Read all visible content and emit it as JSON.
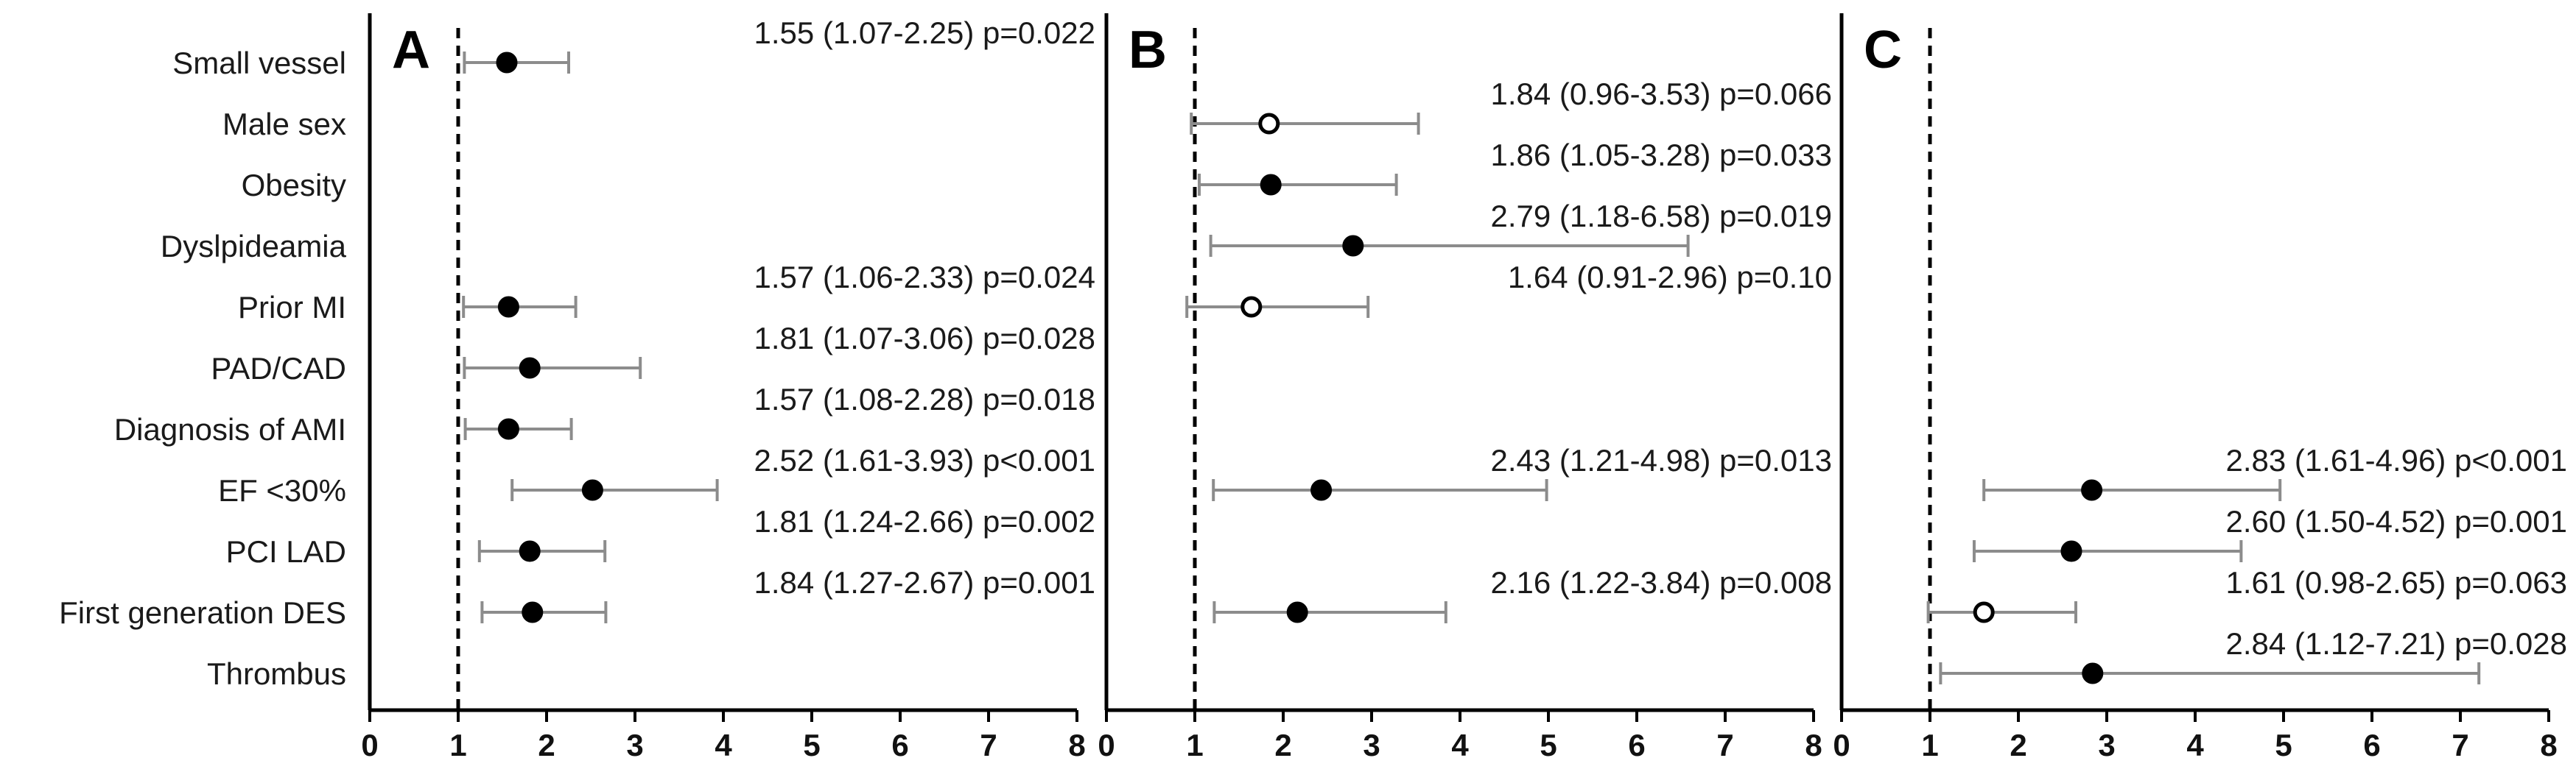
{
  "chart_data": {
    "type": "forest",
    "row_labels": [
      "Small vessel",
      "Male sex",
      "Obesity",
      "Dyslpideamia",
      "Prior MI",
      "PAD/CAD",
      "Diagnosis of AMI",
      "EF <30%",
      "PCI LAD",
      "First generation DES",
      "Thrombus"
    ],
    "xlim": [
      0,
      8
    ],
    "x_ticks": [
      "0",
      "1",
      "2",
      "3",
      "4",
      "5",
      "6",
      "7",
      "8"
    ],
    "reference_line": 1,
    "panels": [
      {
        "label": "A",
        "entries": [
          {
            "row": 0,
            "hr": 1.55,
            "lo": 1.07,
            "hi": 2.25,
            "significant": true,
            "text": "1.55 (1.07-2.25)  p=0.022"
          },
          {
            "row": 4,
            "hr": 1.57,
            "lo": 1.06,
            "hi": 2.33,
            "significant": true,
            "text": "1.57 (1.06-2.33)  p=0.024"
          },
          {
            "row": 5,
            "hr": 1.81,
            "lo": 1.07,
            "hi": 3.06,
            "significant": true,
            "text": "1.81 (1.07-3.06)  p=0.028"
          },
          {
            "row": 6,
            "hr": 1.57,
            "lo": 1.08,
            "hi": 2.28,
            "significant": true,
            "text": "1.57 (1.08-2.28)  p=0.018"
          },
          {
            "row": 7,
            "hr": 2.52,
            "lo": 1.61,
            "hi": 3.93,
            "significant": true,
            "text": "2.52 (1.61-3.93)  p<0.001"
          },
          {
            "row": 8,
            "hr": 1.81,
            "lo": 1.24,
            "hi": 2.66,
            "significant": true,
            "text": "1.81 (1.24-2.66)  p=0.002"
          },
          {
            "row": 9,
            "hr": 1.84,
            "lo": 1.27,
            "hi": 2.67,
            "significant": true,
            "text": "1.84 (1.27-2.67)  p=0.001"
          }
        ]
      },
      {
        "label": "B",
        "entries": [
          {
            "row": 1,
            "hr": 1.84,
            "lo": 0.96,
            "hi": 3.53,
            "significant": false,
            "text": "1.84 (0.96-3.53)  p=0.066"
          },
          {
            "row": 2,
            "hr": 1.86,
            "lo": 1.05,
            "hi": 3.28,
            "significant": true,
            "text": "1.86 (1.05-3.28)  p=0.033"
          },
          {
            "row": 3,
            "hr": 2.79,
            "lo": 1.18,
            "hi": 6.58,
            "significant": true,
            "text": "2.79 (1.18-6.58)  p=0.019"
          },
          {
            "row": 4,
            "hr": 1.64,
            "lo": 0.91,
            "hi": 2.96,
            "significant": false,
            "text": "1.64 (0.91-2.96)  p=0.10"
          },
          {
            "row": 7,
            "hr": 2.43,
            "lo": 1.21,
            "hi": 4.98,
            "significant": true,
            "text": "2.43 (1.21-4.98)  p=0.013"
          },
          {
            "row": 9,
            "hr": 2.16,
            "lo": 1.22,
            "hi": 3.84,
            "significant": true,
            "text": "2.16 (1.22-3.84)  p=0.008"
          }
        ]
      },
      {
        "label": "C",
        "entries": [
          {
            "row": 7,
            "hr": 2.83,
            "lo": 1.61,
            "hi": 4.96,
            "significant": true,
            "text": "2.83 (1.61-4.96)  p<0.001"
          },
          {
            "row": 8,
            "hr": 2.6,
            "lo": 1.5,
            "hi": 4.52,
            "significant": true,
            "text": "2.60 (1.50-4.52)  p=0.001"
          },
          {
            "row": 9,
            "hr": 1.61,
            "lo": 0.98,
            "hi": 2.65,
            "significant": false,
            "text": "1.61 (0.98-2.65)  p=0.063"
          },
          {
            "row": 10,
            "hr": 2.84,
            "lo": 1.12,
            "hi": 7.21,
            "significant": true,
            "text": "2.84 (1.12-7.21)  p=0.028"
          }
        ]
      }
    ],
    "colors": {
      "axis": "#000000",
      "ci_line": "#8c8c8c",
      "marker_fill": "#000000",
      "open_marker_fill": "#ffffff"
    }
  }
}
